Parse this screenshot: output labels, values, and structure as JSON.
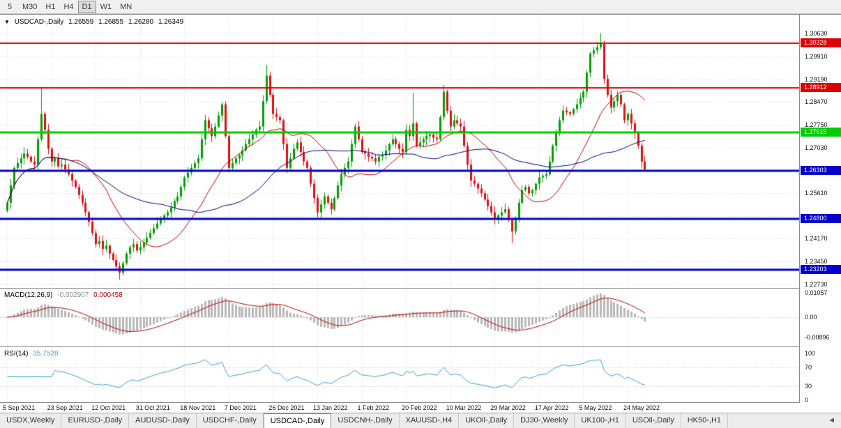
{
  "toolbar": {
    "timeframes": [
      {
        "label": "5"
      },
      {
        "label": "M30"
      },
      {
        "label": "H1"
      },
      {
        "label": "H4"
      },
      {
        "label": "D1",
        "active": true
      },
      {
        "label": "W1"
      },
      {
        "label": "MN"
      }
    ]
  },
  "chart": {
    "title": {
      "dropdown_icon": "▼",
      "symbol": "USDCAD-,Daily",
      "open": "1.26559",
      "high": "1.26855",
      "low": "1.26280",
      "close": "1.26349"
    },
    "y_axis": {
      "ticks": [
        {
          "label": "1.30630",
          "value": 1.3063
        },
        {
          "label": "1.29910",
          "value": 1.2991
        },
        {
          "label": "1.29190",
          "value": 1.2919
        },
        {
          "label": "1.28470",
          "value": 1.2847
        },
        {
          "label": "1.27750",
          "value": 1.2775
        },
        {
          "label": "1.27030",
          "value": 1.2703
        },
        {
          "label": "1.25610",
          "value": 1.2561
        },
        {
          "label": "1.24170",
          "value": 1.2417
        },
        {
          "label": "1.23450",
          "value": 1.2345
        },
        {
          "label": "1.22730",
          "value": 1.2273
        }
      ]
    },
    "grid_prices": [
      1.3063,
      1.2991,
      1.2919,
      1.2847,
      1.2775,
      1.2703,
      1.2631,
      1.2561,
      1.2489,
      1.2417,
      1.2345,
      1.2273
    ],
    "x_axis": {
      "dates": [
        {
          "label": "5 Sep 2021",
          "index": 0
        },
        {
          "label": "23 Sep 2021",
          "index": 13
        },
        {
          "label": "12 Oct 2021",
          "index": 26
        },
        {
          "label": "31 Oct 2021",
          "index": 39
        },
        {
          "label": "18 Nov 2021",
          "index": 52
        },
        {
          "label": "7 Dec 2021",
          "index": 65
        },
        {
          "label": "26 Dec 2021",
          "index": 78
        },
        {
          "label": "13 Jan 2022",
          "index": 91
        },
        {
          "label": "1 Feb 2022",
          "index": 104
        },
        {
          "label": "20 Feb 2022",
          "index": 117
        },
        {
          "label": "10 Mar 2022",
          "index": 130
        },
        {
          "label": "29 Mar 2022",
          "index": 143
        },
        {
          "label": "17 Apr 2022",
          "index": 156
        },
        {
          "label": "5 May 2022",
          "index": 169
        },
        {
          "label": "24 May 2022",
          "index": 182
        }
      ]
    }
  },
  "macd_panel": {
    "name": "MACD(12,26,9)",
    "value_main": "-0.002907",
    "value_signal": "0.000458",
    "axis_labels": [
      {
        "label": "0.01057",
        "value": 0.01057
      },
      {
        "label": "0.00",
        "value": 0
      },
      {
        "label": "-0.00896",
        "value": -0.00896
      }
    ]
  },
  "rsi_panel": {
    "name": "RSI(14)",
    "value": "35.7528",
    "axis_labels": [
      {
        "label": "100",
        "value": 100
      },
      {
        "label": "70",
        "value": 70
      },
      {
        "label": "30",
        "value": 30
      },
      {
        "label": "0",
        "value": 0
      }
    ],
    "guide_levels": [
      70,
      30
    ]
  },
  "tabs": {
    "scroll_left_icon": "◄",
    "items": [
      {
        "label": "USDX,Weekly"
      },
      {
        "label": "EURUSD-,Daily"
      },
      {
        "label": "AUDUSD-,Daily"
      },
      {
        "label": "USDCHF-,Daily"
      },
      {
        "label": "USDCAD-,Daily",
        "active": true
      },
      {
        "label": "USDCNH-,Daily"
      },
      {
        "label": "XAUUSD-,H4"
      },
      {
        "label": "UKOil-,Daily"
      },
      {
        "label": "DJ30-,Weekly"
      },
      {
        "label": "UK100-,H1"
      },
      {
        "label": "USOil-,Daily"
      },
      {
        "label": "HK50-,H1"
      }
    ]
  },
  "chart_data": {
    "type": "candlestick",
    "symbol": "USDCAD",
    "period": "Daily",
    "current_ohlc": {
      "open": 1.26559,
      "high": 1.26855,
      "low": 1.2628,
      "close": 1.26349
    },
    "visible_range": {
      "price_top": 1.3118,
      "price_bottom": 1.2267
    },
    "first_open": 1.2505,
    "closes": [
      1.253,
      1.2585,
      1.264,
      1.2655,
      1.267,
      1.2685,
      1.2675,
      1.266,
      1.265,
      1.273,
      1.281,
      1.276,
      1.27,
      1.266,
      1.267,
      1.2645,
      1.265,
      1.2635,
      1.262,
      1.26,
      1.258,
      1.2555,
      1.253,
      1.25,
      1.247,
      1.2435,
      1.24,
      1.241,
      1.2385,
      1.2395,
      1.237,
      1.235,
      1.233,
      1.231,
      1.234,
      1.237,
      1.239,
      1.24,
      1.238,
      1.239,
      1.2405,
      1.242,
      1.2435,
      1.245,
      1.2465,
      1.248,
      1.249,
      1.25,
      1.2515,
      1.2535,
      1.255,
      1.258,
      1.261,
      1.2625,
      1.264,
      1.2655,
      1.267,
      1.273,
      1.279,
      1.2765,
      1.274,
      1.277,
      1.2805,
      1.284,
      1.274,
      1.264,
      1.2655,
      1.267,
      1.268,
      1.2695,
      1.2715,
      1.273,
      1.2745,
      1.276,
      1.277,
      1.285,
      1.293,
      1.287,
      1.281,
      1.28,
      1.279,
      1.2715,
      1.264,
      1.267,
      1.27,
      1.272,
      1.269,
      1.266,
      1.264,
      1.259,
      1.2545,
      1.25,
      1.2525,
      1.255,
      1.253,
      1.251,
      1.2545,
      1.2585,
      1.262,
      1.264,
      1.266,
      1.2715,
      1.277,
      1.273,
      1.269,
      1.2685,
      1.2675,
      1.267,
      1.266,
      1.2675,
      1.268,
      1.2695,
      1.2715,
      1.273,
      1.2715,
      1.27,
      1.269,
      1.276,
      1.274,
      1.278,
      1.271,
      1.272,
      1.273,
      1.274,
      1.2745,
      1.2735,
      1.273,
      1.28,
      1.288,
      1.282,
      1.277,
      1.279,
      1.278,
      1.277,
      1.271,
      1.265,
      1.26,
      1.259,
      1.2575,
      1.256,
      1.254,
      1.252,
      1.25,
      1.248,
      1.249,
      1.25,
      1.251,
      1.2475,
      1.244,
      1.248,
      1.253,
      1.257,
      1.258,
      1.256,
      1.257,
      1.259,
      1.261,
      1.2615,
      1.262,
      1.266,
      1.271,
      1.275,
      1.279,
      1.282,
      1.2815,
      1.281,
      1.2825,
      1.284,
      1.286,
      1.288,
      1.294,
      1.3,
      1.301,
      1.302,
      1.303,
      1.292,
      1.287,
      1.283,
      1.285,
      1.287,
      1.284,
      1.279,
      1.281,
      1.278,
      1.275,
      1.271,
      1.266,
      1.2635
    ],
    "wick_overrides": {
      "10": {
        "h": 1.2895
      },
      "33": {
        "l": 1.2288
      },
      "76": {
        "h": 1.2964
      },
      "119": {
        "h": 1.2877
      },
      "128": {
        "h": 1.2901
      },
      "148": {
        "l": 1.2403
      },
      "174": {
        "h": 1.3065
      },
      "187": {
        "l": 1.2628
      }
    },
    "levels": [
      {
        "label": "1.30328",
        "value": 1.30328,
        "color": "#dd0000",
        "width": 2
      },
      {
        "label": "1.28912",
        "value": 1.28912,
        "color": "#dd0000",
        "width": 2
      },
      {
        "label": "1.27515",
        "value": 1.27515,
        "color": "#00cc00",
        "width": 3
      },
      {
        "label": "1.26303",
        "value": 1.26303,
        "color": "#0000cc",
        "width": 3
      },
      {
        "label": "1.24800",
        "value": 1.248,
        "color": "#0000cc",
        "width": 3
      },
      {
        "label": "1.23203",
        "value": 1.23203,
        "color": "#0000cc",
        "width": 3
      }
    ],
    "moving_averages": [
      {
        "period": 20,
        "color": "#c40000"
      },
      {
        "period": 45,
        "color": "#000080"
      }
    ],
    "candle_colors": {
      "bull": "#00a000",
      "bear": "#e01010"
    },
    "macd": {
      "fast": 12,
      "slow": 26,
      "signal": 9,
      "histogram_color": "#b8b8b8",
      "signal_color": "#c40000"
    },
    "rsi": {
      "period": 14,
      "color": "#3e9edb"
    }
  }
}
